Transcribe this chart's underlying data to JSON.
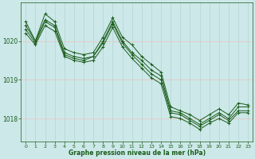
{
  "title": "Graphe pression niveau de la mer (hPa)",
  "bg_color": "#cce8e8",
  "grid_color_v": "#b8d8d8",
  "grid_color_h": "#e8c8c8",
  "line_color": "#1a5c1a",
  "tick_label_color": "#1a5c1a",
  "title_color": "#1a5c1a",
  "ylim": [
    1017.4,
    1021.0
  ],
  "yticks": [
    1018,
    1019,
    1020
  ],
  "xticks": [
    0,
    1,
    2,
    3,
    4,
    5,
    6,
    7,
    8,
    9,
    10,
    11,
    12,
    13,
    14,
    15,
    16,
    17,
    18,
    19,
    20,
    21,
    22,
    23
  ],
  "series": [
    [
      1020.5,
      1020.0,
      1020.7,
      1020.5,
      1019.8,
      1019.7,
      1019.65,
      1019.7,
      1020.1,
      1020.6,
      1020.1,
      1019.9,
      1019.6,
      1019.4,
      1019.2,
      1018.3,
      1018.2,
      1018.1,
      1017.95,
      1018.1,
      1018.25,
      1018.1,
      1018.4,
      1018.35
    ],
    [
      1020.4,
      1020.0,
      1020.55,
      1020.4,
      1019.7,
      1019.6,
      1019.55,
      1019.6,
      1020.0,
      1020.5,
      1020.0,
      1019.7,
      1019.5,
      1019.25,
      1019.1,
      1018.2,
      1018.15,
      1018.0,
      1017.85,
      1018.0,
      1018.15,
      1018.0,
      1018.3,
      1018.3
    ],
    [
      1020.3,
      1019.95,
      1020.5,
      1020.35,
      1019.65,
      1019.55,
      1019.5,
      1019.6,
      1019.95,
      1020.45,
      1019.95,
      1019.65,
      1019.4,
      1019.15,
      1019.0,
      1018.15,
      1018.1,
      1017.95,
      1017.8,
      1017.95,
      1018.1,
      1017.95,
      1018.2,
      1018.2
    ],
    [
      1020.2,
      1019.9,
      1020.4,
      1020.25,
      1019.6,
      1019.5,
      1019.45,
      1019.5,
      1019.85,
      1020.35,
      1019.85,
      1019.55,
      1019.3,
      1019.05,
      1018.9,
      1018.05,
      1018.0,
      1017.88,
      1017.72,
      1017.88,
      1018.0,
      1017.88,
      1018.15,
      1018.15
    ]
  ]
}
